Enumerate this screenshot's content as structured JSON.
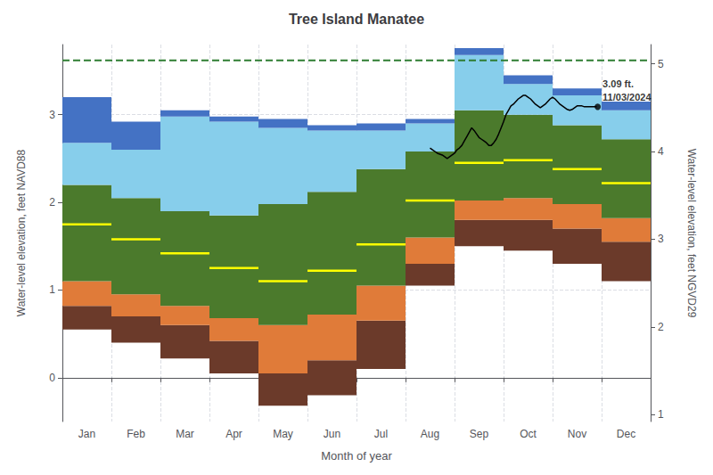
{
  "chart_data": {
    "type": "band",
    "title": "Tree Island Manatee",
    "xlabel": "Month of year",
    "ylabel": "Water-level elevation, feet NAVD88",
    "y2label": "Water-level elevation, feet NGVD29",
    "categories": [
      "Jan",
      "Feb",
      "Mar",
      "Apr",
      "May",
      "Jun",
      "Jul",
      "Aug",
      "Sep",
      "Oct",
      "Nov",
      "Dec"
    ],
    "xlim": [
      0,
      12
    ],
    "ylim": [
      -0.5,
      3.8
    ],
    "yticks": [
      0,
      1,
      2,
      3
    ],
    "y2lim": [
      0.92,
      5.22
    ],
    "y2ticks": [
      1,
      2,
      3,
      4,
      5
    ],
    "grid": true,
    "series": [
      {
        "type": "band",
        "color": "#6B3A2A",
        "low": [
          0.55,
          0.4,
          0.22,
          0.05,
          -0.32,
          -0.2,
          0.1,
          1.05,
          1.5,
          1.45,
          1.3,
          1.1
        ],
        "high": [
          0.82,
          0.7,
          0.6,
          0.42,
          0.05,
          0.2,
          0.65,
          1.3,
          1.8,
          1.8,
          1.7,
          1.55
        ]
      },
      {
        "type": "band",
        "color": "#E07B39",
        "low": [
          0.82,
          0.7,
          0.6,
          0.42,
          0.05,
          0.2,
          0.65,
          1.3,
          1.8,
          1.8,
          1.7,
          1.55
        ],
        "high": [
          1.1,
          0.95,
          0.82,
          0.68,
          0.6,
          0.72,
          1.05,
          1.6,
          2.02,
          2.05,
          1.98,
          1.82
        ]
      },
      {
        "type": "band",
        "color": "#4B7A2C",
        "low": [
          1.1,
          0.95,
          0.82,
          0.68,
          0.6,
          0.72,
          1.05,
          1.6,
          2.02,
          2.05,
          1.98,
          1.82
        ],
        "high": [
          2.2,
          2.05,
          1.9,
          1.85,
          1.98,
          2.12,
          2.38,
          2.58,
          3.05,
          3.0,
          2.88,
          2.72
        ]
      },
      {
        "type": "band",
        "color": "#87CEEB",
        "low": [
          2.2,
          2.05,
          1.9,
          1.85,
          1.98,
          2.12,
          2.38,
          2.58,
          3.05,
          3.0,
          2.88,
          2.72
        ],
        "high": [
          2.68,
          2.6,
          2.98,
          2.92,
          2.85,
          2.82,
          2.82,
          2.9,
          3.68,
          3.35,
          3.22,
          3.05
        ]
      },
      {
        "type": "band",
        "color": "#4472C4",
        "low": [
          2.68,
          2.6,
          2.98,
          2.92,
          2.85,
          2.82,
          2.82,
          2.9,
          3.68,
          3.35,
          3.22,
          3.05
        ],
        "high": [
          3.2,
          2.92,
          3.05,
          2.98,
          2.95,
          2.88,
          2.9,
          2.95,
          3.76,
          3.45,
          3.3,
          3.15
        ]
      },
      {
        "type": "step",
        "color": "#FFFF00",
        "values": [
          1.75,
          1.58,
          1.42,
          1.25,
          1.1,
          1.22,
          1.52,
          2.02,
          2.45,
          2.48,
          2.38,
          2.22
        ]
      },
      {
        "type": "hline",
        "color": "#2E7D32",
        "line_style": "dashed",
        "value": 3.62
      },
      {
        "type": "line",
        "color": "#000000",
        "x": [
          7.5,
          7.55,
          7.6,
          7.65,
          7.7,
          7.75,
          7.8,
          7.85,
          7.9,
          7.95,
          8.0,
          8.05,
          8.1,
          8.15,
          8.2,
          8.25,
          8.3,
          8.35,
          8.4,
          8.45,
          8.5,
          8.55,
          8.6,
          8.65,
          8.7,
          8.75,
          8.8,
          8.85,
          8.9,
          8.95,
          9.0,
          9.05,
          9.1,
          9.15,
          9.2,
          9.25,
          9.3,
          9.35,
          9.4,
          9.45,
          9.5,
          9.55,
          9.6,
          9.65,
          9.7,
          9.75,
          9.8,
          9.85,
          9.9,
          9.95,
          10.0,
          10.05,
          10.1,
          10.15,
          10.2,
          10.25,
          10.3,
          10.35,
          10.4,
          10.45,
          10.5,
          10.55,
          10.6,
          10.65,
          10.7,
          10.75,
          10.8,
          10.85,
          10.9
        ],
        "values": [
          2.62,
          2.6,
          2.58,
          2.56,
          2.55,
          2.54,
          2.52,
          2.5,
          2.52,
          2.54,
          2.56,
          2.6,
          2.62,
          2.65,
          2.7,
          2.75,
          2.8,
          2.85,
          2.82,
          2.78,
          2.74,
          2.72,
          2.7,
          2.68,
          2.65,
          2.65,
          2.68,
          2.72,
          2.78,
          2.85,
          2.92,
          3.0,
          3.05,
          3.1,
          3.12,
          3.15,
          3.18,
          3.2,
          3.22,
          3.22,
          3.2,
          3.18,
          3.15,
          3.12,
          3.1,
          3.08,
          3.1,
          3.12,
          3.15,
          3.18,
          3.2,
          3.18,
          3.15,
          3.12,
          3.1,
          3.08,
          3.06,
          3.05,
          3.06,
          3.08,
          3.1,
          3.1,
          3.1,
          3.09,
          3.09,
          3.09,
          3.09,
          3.09,
          3.09
        ]
      }
    ],
    "annotations": [
      {
        "x": 10.92,
        "y": 3.09,
        "text": "3.09 ft.\n11/03/2024"
      }
    ]
  }
}
